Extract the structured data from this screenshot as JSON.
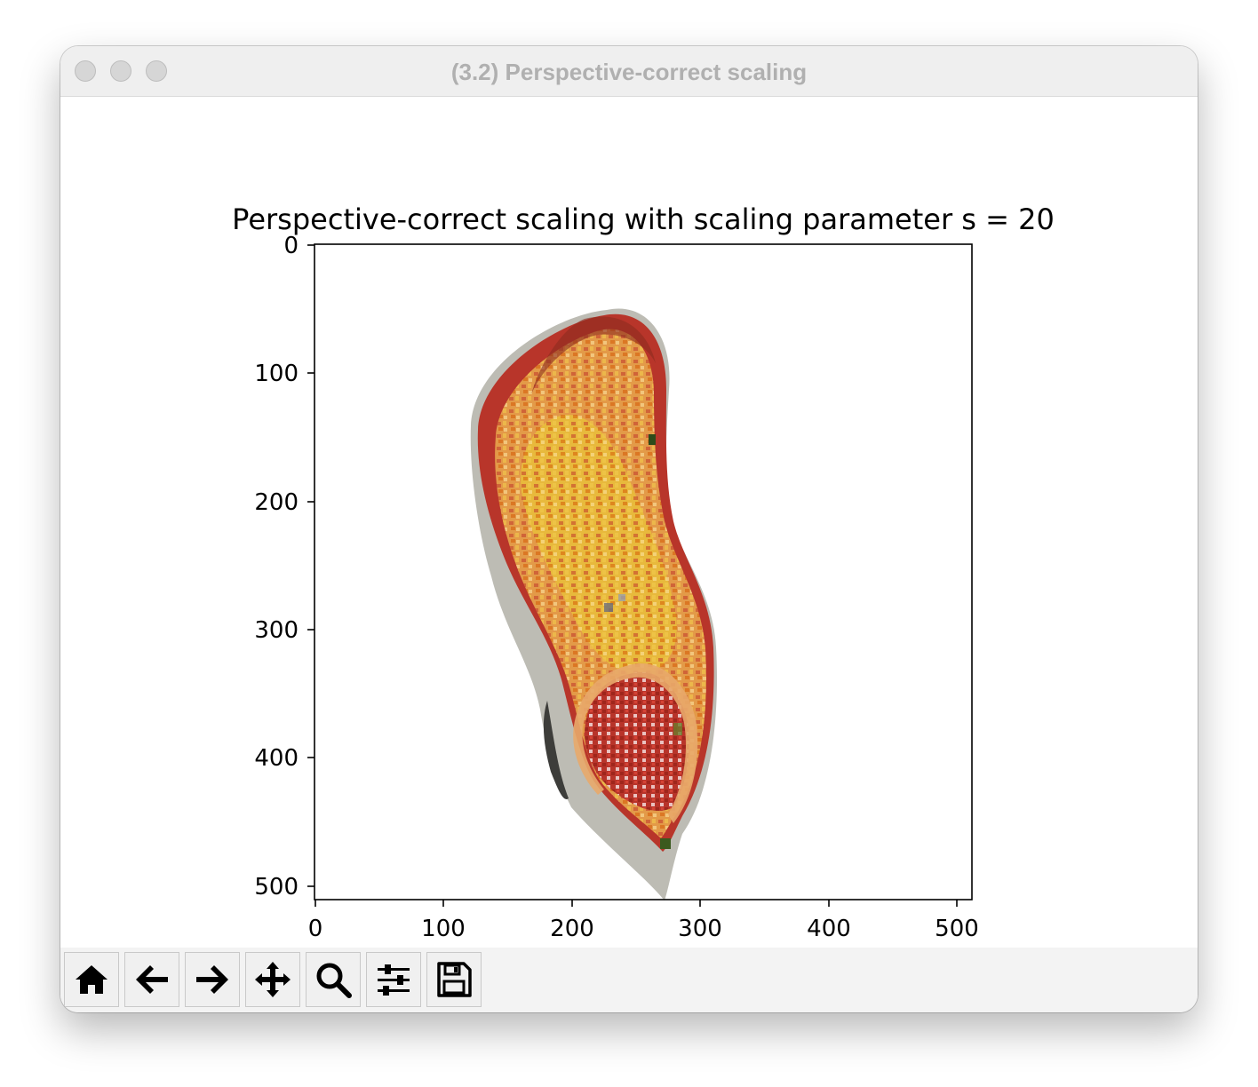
{
  "window": {
    "title": "(3.2) Perspective-correct scaling"
  },
  "chart_data": {
    "type": "image",
    "title": "Perspective-correct scaling with scaling parameter s = 20",
    "xlabel": "",
    "ylabel": "",
    "xlim": [
      0,
      512
    ],
    "ylim": [
      512,
      0
    ],
    "x_ticks": [
      0,
      100,
      200,
      300,
      400,
      500
    ],
    "y_ticks": [
      0,
      100,
      200,
      300,
      400,
      500
    ],
    "x_tick_labels": [
      "0",
      "100",
      "200",
      "300",
      "400",
      "500"
    ],
    "y_tick_labels": [
      "0",
      "100",
      "200",
      "300",
      "400",
      "500"
    ],
    "image_content": "point-rendered shoe (sneaker) viewed from above, orange/red/yellow colors",
    "grid": false
  },
  "toolbar": {
    "buttons": [
      {
        "name": "home",
        "icon": "home-icon",
        "tooltip": "Reset original view"
      },
      {
        "name": "back",
        "icon": "arrow-left-icon",
        "tooltip": "Back to previous view"
      },
      {
        "name": "forward",
        "icon": "arrow-right-icon",
        "tooltip": "Forward to next view"
      },
      {
        "name": "pan",
        "icon": "move-icon",
        "tooltip": "Pan axes"
      },
      {
        "name": "zoom",
        "icon": "magnifier-icon",
        "tooltip": "Zoom to rectangle"
      },
      {
        "name": "configure",
        "icon": "sliders-icon",
        "tooltip": "Configure subplots"
      },
      {
        "name": "save",
        "icon": "floppy-disk-icon",
        "tooltip": "Save the figure"
      }
    ]
  },
  "colors": {
    "titlebar_bg": "#efefef",
    "title_text": "#b0b0b0",
    "toolbar_bg": "#f3f3f3",
    "shoe_outer_red": "#b8352a",
    "shoe_orange": "#e39a48",
    "shoe_yellow": "#e8b93c",
    "sole_gray": "#b9b8b0"
  }
}
